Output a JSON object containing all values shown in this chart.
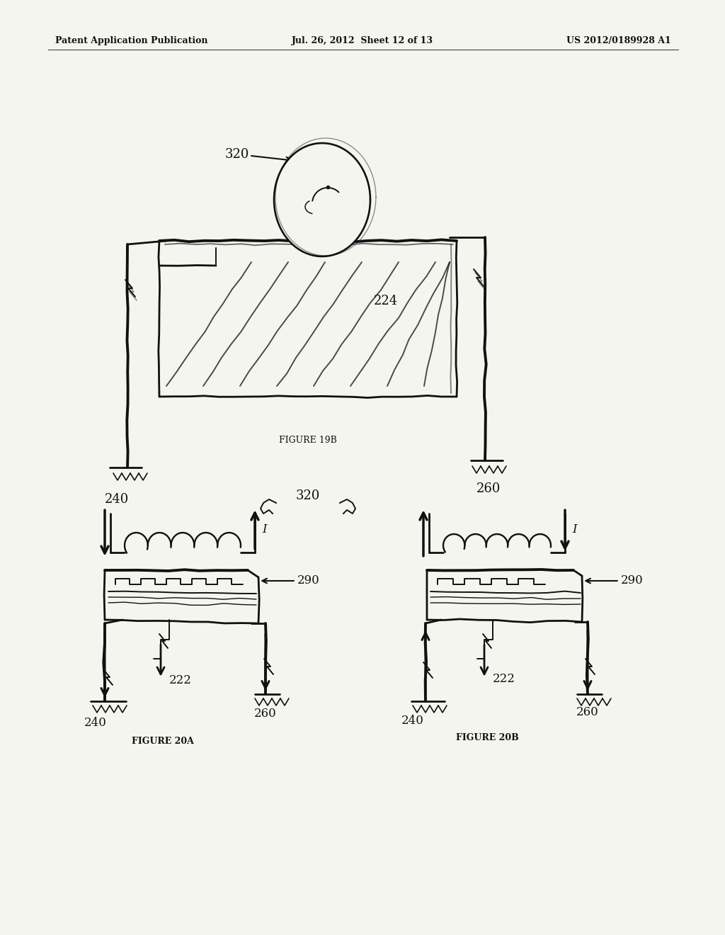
{
  "background_color": "#f5f5f0",
  "page_width": 10.24,
  "page_height": 13.2,
  "header_left": "Patent Application Publication",
  "header_mid": "Jul. 26, 2012  Sheet 12 of 13",
  "header_right": "US 2012/0189928 A1",
  "fig19b_caption": "FIGURE 19B",
  "fig20a_caption": "FIGURE 20A",
  "fig20b_caption": "FIGURE 20B",
  "text_color": "#111111",
  "sketch_color": "#111111",
  "header_font_size": 9,
  "caption_font_size": 8,
  "label_font_size": 12
}
